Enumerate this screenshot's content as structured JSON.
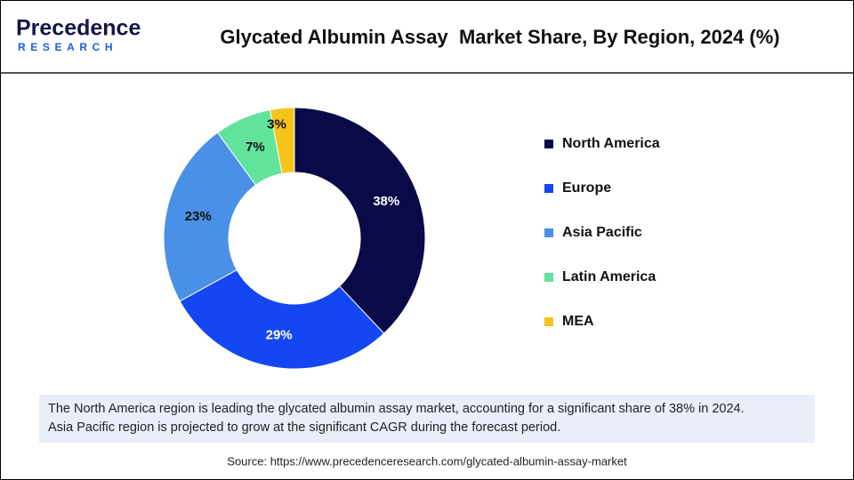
{
  "logo": {
    "name": "Precedence",
    "tagline": "RESEARCH"
  },
  "chart_data": {
    "type": "donut",
    "title": "Glycated Albumin Assay  Market Share, By Region, 2024 (%)",
    "categories": [
      "North America",
      "Europe",
      "Asia Pacific",
      "Latin America",
      "MEA"
    ],
    "values": [
      38,
      29,
      23,
      7,
      3
    ],
    "value_labels": [
      "38%",
      "29%",
      "23%",
      "7%",
      "3%"
    ],
    "colors": [
      "#0b0a48",
      "#1447f2",
      "#4a90e6",
      "#62e39c",
      "#f5c31a"
    ],
    "legend": "right"
  },
  "note": [
    "The North America region is leading the glycated albumin assay market, accounting for a significant share of 38% in 2024.",
    "Asia Pacific region is projected to grow at the significant CAGR during the forecast period."
  ],
  "source": "Source: https://www.precedenceresearch.com/glycated-albumin-assay-market"
}
